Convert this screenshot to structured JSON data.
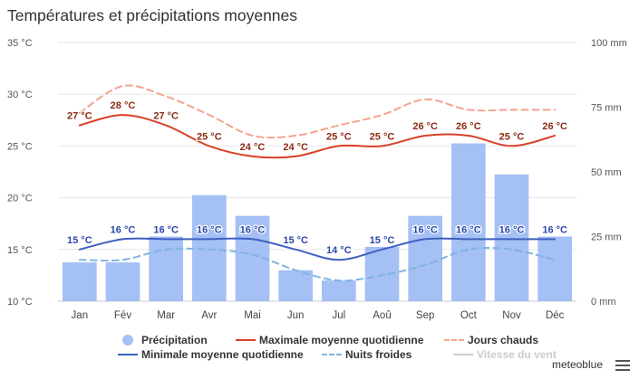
{
  "title": "Températures et précipitations moyennes",
  "brand": "meteoblue",
  "menu_icon": "hamburger-menu-icon",
  "legend": [
    {
      "key": "precip",
      "label": "Précipitation",
      "symbol": "dot",
      "color": "#a4c0f4",
      "enabled": true
    },
    {
      "key": "max",
      "label": "Maximale moyenne quotidienne",
      "symbol": "line",
      "color": "#d84127",
      "enabled": true
    },
    {
      "key": "hot",
      "label": "Jours chauds",
      "symbol": "dash",
      "color": "#f5a28e",
      "enabled": true
    },
    {
      "key": "min",
      "label": "Minimale moyenne quotidienne",
      "symbol": "line",
      "color": "#3d5fc0",
      "enabled": true
    },
    {
      "key": "cold",
      "label": "Nuits froides",
      "symbol": "dash",
      "color": "#82b3e0",
      "enabled": true
    },
    {
      "key": "wind",
      "label": "Vitesse du vent",
      "symbol": "line",
      "color": "#cccccc",
      "enabled": false
    }
  ],
  "chart_data": {
    "type": "bar+line",
    "categories": [
      "Jan",
      "Fév",
      "Mar",
      "Avr",
      "Mai",
      "Jun",
      "Jul",
      "Aoû",
      "Sep",
      "Oct",
      "Nov",
      "Déc"
    ],
    "y_left": {
      "ticks": [
        "35 °C",
        "30 °C",
        "25 °C",
        "20 °C",
        "15 °C",
        "10 °C"
      ],
      "min": 10,
      "max": 35
    },
    "y_right": {
      "ticks": [
        "100 mm",
        "75 mm",
        "50 mm",
        "25 mm",
        "0 mm"
      ],
      "min": 0,
      "max": 100
    },
    "series": [
      {
        "name": "Précipitation",
        "type": "bar",
        "axis": "right",
        "unit": "mm",
        "values": [
          15,
          15,
          25,
          41,
          33,
          12,
          8,
          21,
          33,
          61,
          49,
          25
        ]
      },
      {
        "name": "Maximale moyenne quotidienne",
        "type": "line",
        "axis": "left",
        "unit": "°C",
        "values": [
          27,
          28,
          27,
          25,
          24,
          24,
          25,
          25,
          26,
          26,
          25,
          26
        ],
        "labels": [
          "27 °C",
          "28 °C",
          "27 °C",
          "25 °C",
          "24 °C",
          "24 °C",
          "25 °C",
          "25 °C",
          "26 °C",
          "26 °C",
          "25 °C",
          "26 °C"
        ]
      },
      {
        "name": "Jours chauds",
        "type": "line-dashed",
        "axis": "left",
        "unit": "°C",
        "values": [
          28.2,
          30.8,
          29.8,
          28,
          26,
          26,
          27,
          28,
          29.5,
          28.5,
          28.5,
          28.5
        ]
      },
      {
        "name": "Minimale moyenne quotidienne",
        "type": "line",
        "axis": "left",
        "unit": "°C",
        "values": [
          15,
          16,
          16,
          16,
          16,
          15,
          14,
          15,
          16,
          16,
          16,
          16
        ],
        "labels": [
          "15 °C",
          "16 °C",
          "16 °C",
          "16 °C",
          "16 °C",
          "15 °C",
          "14 °C",
          "15 °C",
          "16 °C",
          "16 °C",
          "16 °C",
          "16 °C"
        ]
      },
      {
        "name": "Nuits froides",
        "type": "line-dashed",
        "axis": "left",
        "unit": "°C",
        "values": [
          14,
          14,
          15,
          15,
          14.5,
          13,
          12,
          12.5,
          13.5,
          15,
          15,
          14
        ]
      }
    ],
    "grid": true,
    "legend_position": "bottom"
  }
}
